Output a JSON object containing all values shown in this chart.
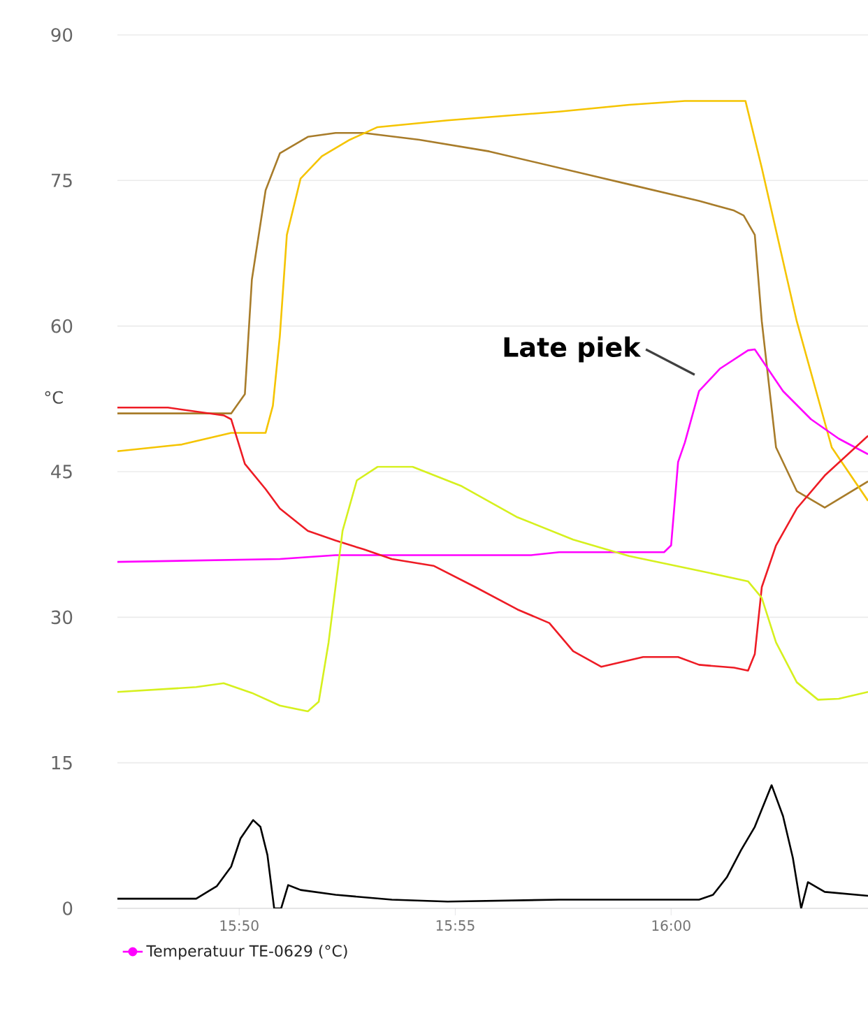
{
  "chart_data": {
    "type": "line",
    "ylabel": "°C",
    "xlim": [
      15.7863,
      16.076
    ],
    "ylim": [
      0,
      90
    ],
    "xticks": [
      {
        "value": 15.8333,
        "label": "15:50"
      },
      {
        "value": 15.9167,
        "label": "15:55"
      },
      {
        "value": 16.0,
        "label": "16:00"
      }
    ],
    "yticks": [
      0,
      15,
      30,
      45,
      60,
      75,
      90
    ],
    "grid": "y",
    "legend": "bottom",
    "annotations": [
      "Late piek"
    ],
    "series": [
      {
        "color": "#a87c2a",
        "x": [
          15.7863,
          15.8302,
          15.8355,
          15.8382,
          15.8435,
          15.849,
          15.8598,
          15.8705,
          15.8813,
          15.9028,
          15.9298,
          15.9568,
          15.9838,
          16.0108,
          16.0243,
          16.028,
          16.0323,
          16.035,
          16.0405,
          16.0485,
          16.0593,
          16.076
        ],
        "values": [
          51,
          51,
          53,
          64.8,
          74,
          77.8,
          79.5,
          79.9,
          79.9,
          79.2,
          78,
          76.3,
          74.6,
          72.9,
          71.9,
          71.4,
          69.4,
          60.5,
          47.5,
          43,
          41.3,
          44
        ]
      },
      {
        "color": "#f5c400",
        "x": [
          15.7863,
          15.8112,
          15.8302,
          15.8435,
          15.8463,
          15.849,
          15.8517,
          15.857,
          15.8652,
          15.876,
          15.8867,
          15.9137,
          15.9568,
          15.9838,
          16.0053,
          16.0287,
          16.035,
          16.0485,
          16.062,
          16.076
        ],
        "values": [
          47.1,
          47.8,
          49,
          49,
          51.8,
          59,
          69.4,
          75.2,
          77.5,
          79.2,
          80.5,
          81.2,
          82.1,
          82.8,
          83.2,
          83.2,
          76.3,
          60.5,
          47.5,
          42
        ]
      },
      {
        "name": "Temperatuur TE-0629 (°C)",
        "color": "#ff00ff",
        "x": [
          15.7863,
          15.849,
          15.8705,
          15.946,
          15.9568,
          15.9973,
          16.0,
          16.0027,
          16.0053,
          16.0108,
          16.0188,
          16.0297,
          16.0323,
          16.0432,
          16.054,
          16.0647,
          16.076
        ],
        "values": [
          35.7,
          36,
          36.4,
          36.4,
          36.7,
          36.7,
          37.4,
          46,
          48,
          53.3,
          55.6,
          57.5,
          57.6,
          53.3,
          50.4,
          48.4,
          46.8
        ]
      },
      {
        "color": "#ee1c25",
        "x": [
          15.7863,
          15.8058,
          15.8273,
          15.8302,
          15.8355,
          15.8435,
          15.849,
          15.8598,
          15.8705,
          15.8813,
          15.8922,
          15.9083,
          15.9245,
          15.9407,
          15.953,
          15.9622,
          15.973,
          15.9892,
          16.0027,
          16.0108,
          16.0243,
          16.0297,
          16.0323,
          16.035,
          16.0405,
          16.0485,
          16.0593,
          16.076
        ],
        "values": [
          51.6,
          51.6,
          50.8,
          50.4,
          45.8,
          43.2,
          41.2,
          38.9,
          37.9,
          37,
          36,
          35.3,
          33.1,
          30.8,
          29.4,
          26.5,
          24.9,
          25.9,
          25.9,
          25.1,
          24.8,
          24.5,
          26.2,
          33.1,
          37.4,
          41.2,
          44.6,
          48.7
        ]
      },
      {
        "color": "#d6f01e",
        "x": [
          15.7863,
          15.8167,
          15.8273,
          15.8382,
          15.849,
          15.8598,
          15.864,
          15.8678,
          15.8732,
          15.8787,
          15.8867,
          15.9002,
          15.9192,
          15.9407,
          15.9622,
          15.9838,
          16.0108,
          16.0297,
          16.035,
          16.0405,
          16.0485,
          16.0567,
          16.0647,
          16.076
        ],
        "values": [
          22.3,
          22.8,
          23.2,
          22.2,
          20.9,
          20.3,
          21.3,
          27.4,
          38.9,
          44.1,
          45.5,
          45.5,
          43.5,
          40.3,
          38,
          36.3,
          34.8,
          33.7,
          32,
          27.4,
          23.3,
          21.5,
          21.6,
          22.3
        ]
      },
      {
        "color": "#000000",
        "x": [
          15.7863,
          15.8167,
          15.8247,
          15.8302,
          15.8338,
          15.8387,
          15.8415,
          15.8442,
          15.8468,
          15.8495,
          15.8522,
          15.857,
          15.8705,
          15.8922,
          15.9137,
          15.9568,
          16.0108,
          16.0162,
          16.0215,
          16.027,
          16.0323,
          16.0388,
          16.0432,
          16.047,
          16.0502,
          16.0528,
          16.0593,
          16.076
        ],
        "values": [
          1,
          1,
          2.3,
          4.3,
          7.2,
          9.1,
          8.4,
          5.5,
          0,
          0,
          2.4,
          1.9,
          1.4,
          0.9,
          0.7,
          0.9,
          0.9,
          1.4,
          3.2,
          6,
          8.4,
          12.7,
          9.5,
          5.2,
          0,
          2.7,
          1.7,
          1.3
        ]
      }
    ]
  }
}
